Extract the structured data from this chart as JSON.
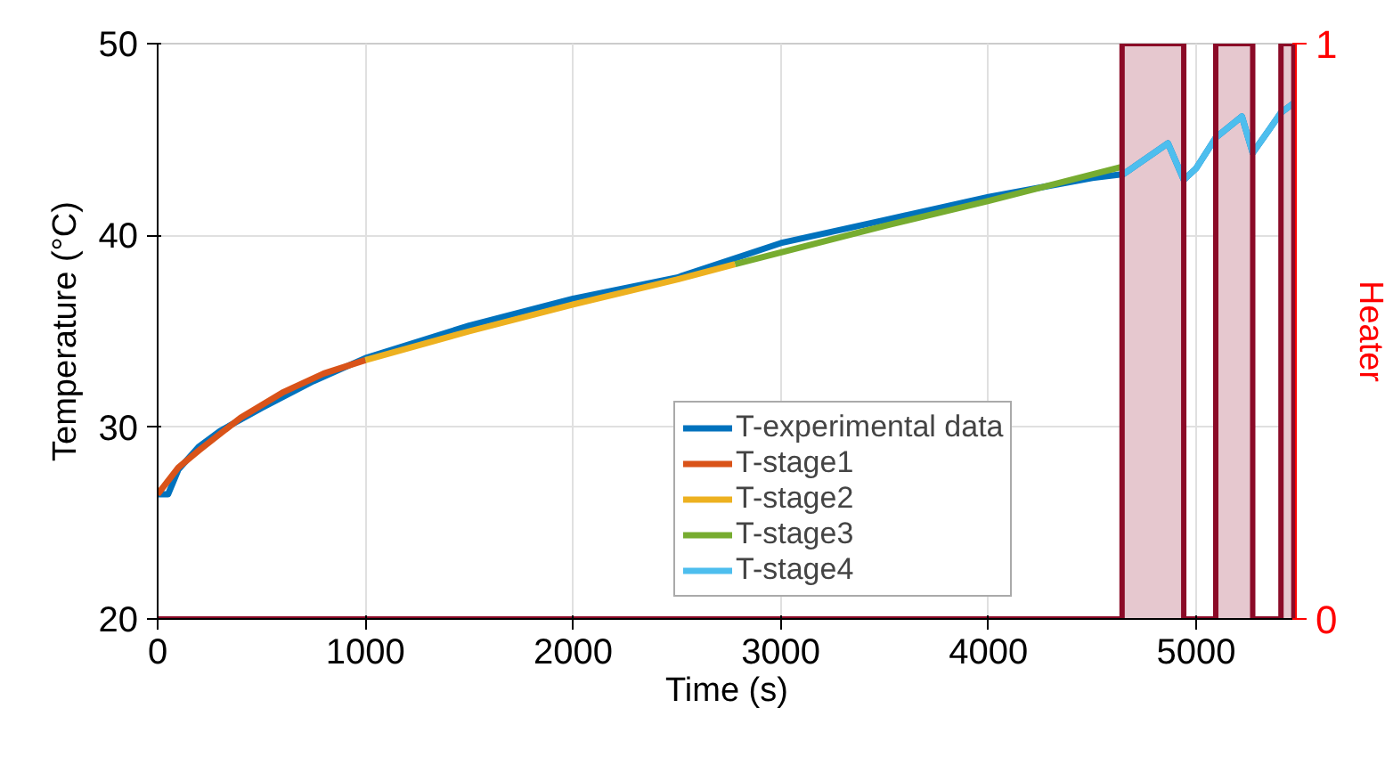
{
  "chart_data": {
    "type": "line",
    "xlabel": "Time (s)",
    "ylabel": "Temperature (°C)",
    "y2label": "Heater",
    "xlim": [
      0,
      5480
    ],
    "xticks": [
      0,
      1000,
      2000,
      3000,
      4000,
      5000
    ],
    "ylim": [
      20,
      50
    ],
    "yticks": [
      20,
      30,
      40,
      50
    ],
    "y2lim": [
      0,
      1
    ],
    "y2ticks": [
      0,
      1
    ],
    "grid": true,
    "legend": "bottom",
    "line_style": "solid",
    "marker": "none",
    "series": [
      {
        "name": "T-experimental data",
        "color": "#0072bd",
        "x": [
          0,
          50,
          100,
          200,
          300,
          500,
          750,
          1000,
          1500,
          2000,
          2500,
          3000,
          3500,
          4000,
          4500,
          4650,
          4864,
          4940,
          5000,
          5094,
          5220,
          5272,
          5350,
          5408,
          5470
        ],
        "values": [
          26.5,
          26.5,
          27.8,
          29,
          29.8,
          31,
          32.4,
          33.6,
          35.3,
          36.7,
          37.8,
          39.6,
          40.8,
          42,
          43,
          43.2,
          44.8,
          42.9,
          43.5,
          45.1,
          46.2,
          44.3,
          45.5,
          46.4,
          46.9
        ]
      },
      {
        "name": "T-stage1",
        "color": "#d95319",
        "x": [
          0,
          100,
          200,
          400,
          600,
          800,
          1000
        ],
        "values": [
          26.5,
          27.9,
          28.8,
          30.5,
          31.8,
          32.8,
          33.5
        ]
      },
      {
        "name": "T-stage2",
        "color": "#edb120",
        "x": [
          1000,
          1500,
          2000,
          2500,
          2780
        ],
        "values": [
          33.5,
          35,
          36.4,
          37.7,
          38.5
        ]
      },
      {
        "name": "T-stage3",
        "color": "#77ac30",
        "x": [
          2780,
          3500,
          4000,
          4650
        ],
        "values": [
          38.5,
          40.5,
          41.8,
          43.6
        ]
      },
      {
        "name": "T-stage4",
        "color": "#4dbeee",
        "x": [
          4650,
          4864,
          4940,
          5000,
          5094,
          5220,
          5272,
          5350,
          5408,
          5470
        ],
        "values": [
          43.2,
          44.8,
          42.9,
          43.5,
          45.1,
          46.2,
          44.3,
          45.5,
          46.4,
          46.9
        ]
      },
      {
        "type": "step",
        "axis": "y2",
        "color": "#8b0a27",
        "x": [
          0,
          4643,
          4940,
          5094,
          5272,
          5408,
          5470
        ],
        "values": [
          0,
          1,
          0,
          1,
          0,
          1,
          0
        ]
      }
    ],
    "bands": [
      {
        "axis": "x",
        "from": 4643,
        "to": 4940,
        "color": "#e6c8cf"
      },
      {
        "axis": "x",
        "from": 5094,
        "to": 5272,
        "color": "#e6c8cf"
      },
      {
        "axis": "x",
        "from": 5408,
        "to": 5470,
        "color": "#e6c8cf"
      }
    ]
  }
}
